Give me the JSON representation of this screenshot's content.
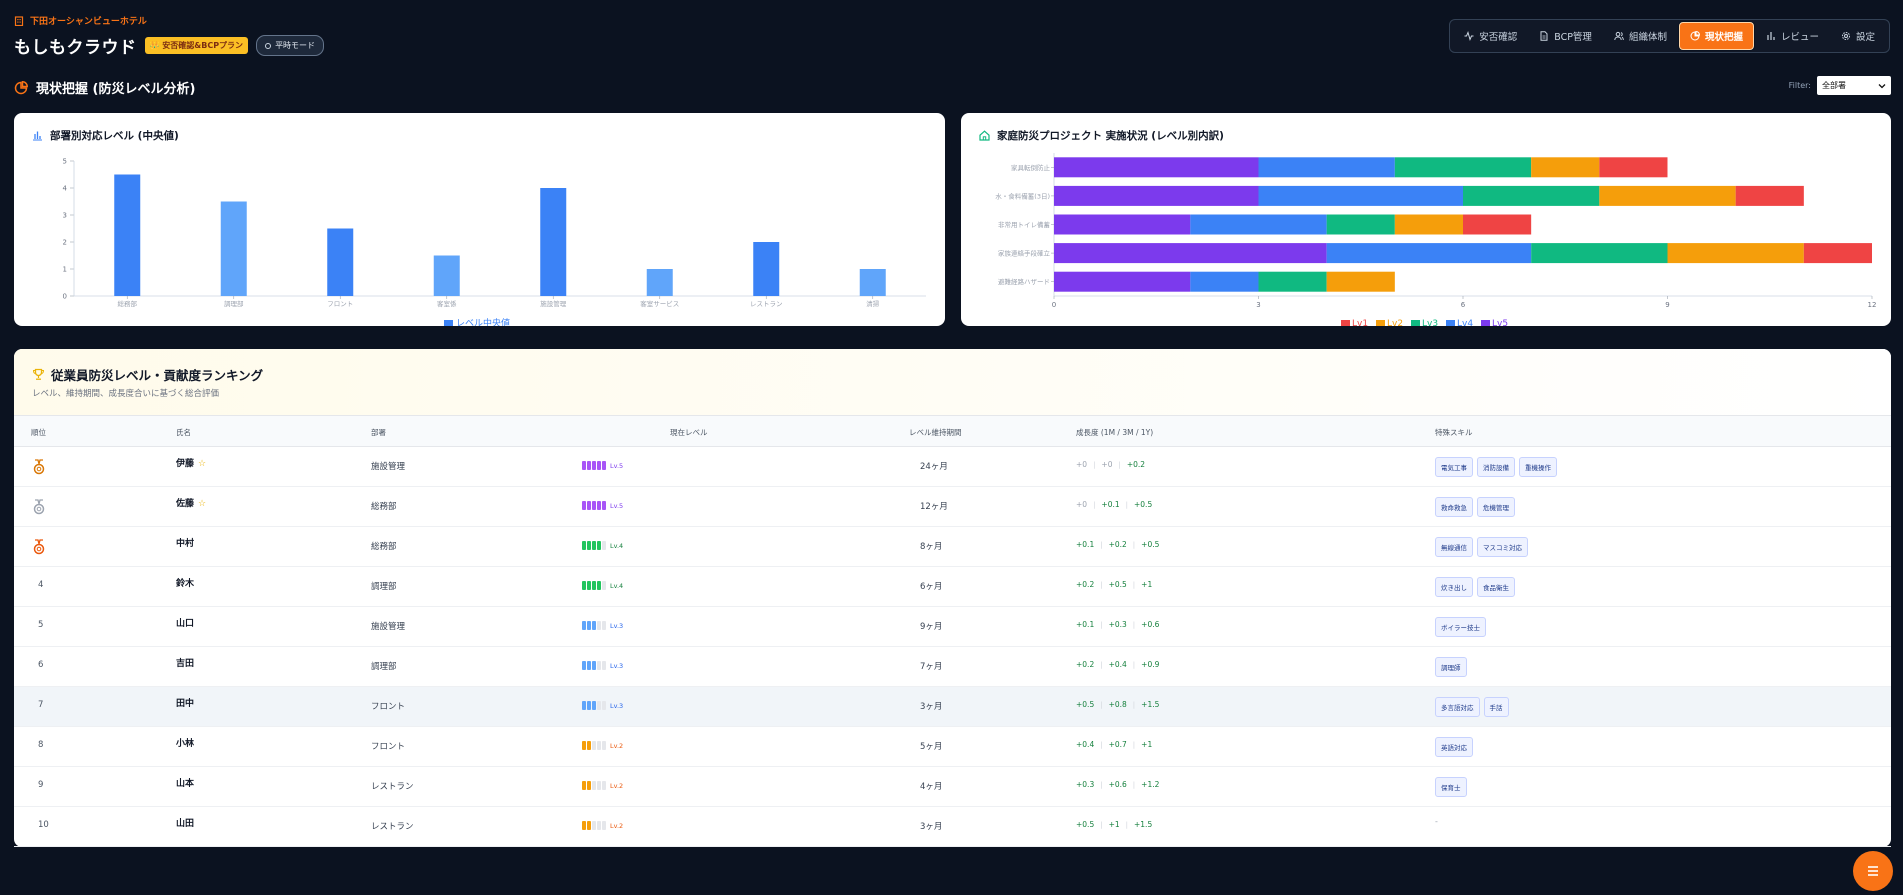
{
  "header": {
    "hotel_name": "下田オーシャンビューホテル",
    "app_name": "もしもクラウド",
    "plan_badge": "👑 安否確認&BCPプラン",
    "mode_label": "平時モード"
  },
  "nav": {
    "items": [
      {
        "label": "安否確認",
        "icon": "activity-icon"
      },
      {
        "label": "BCP管理",
        "icon": "document-icon"
      },
      {
        "label": "組織体制",
        "icon": "users-icon"
      },
      {
        "label": "現状把握",
        "icon": "pie-chart-icon",
        "active": true
      },
      {
        "label": "レビュー",
        "icon": "bar-chart-icon"
      },
      {
        "label": "設定",
        "icon": "gear-icon"
      }
    ]
  },
  "page": {
    "title": "現状把握 (防災レベル分析)",
    "filter_label": "Filter:",
    "filter_value": "全部署"
  },
  "colors": {
    "accent": "#f97316",
    "lv1": "#ef4444",
    "lv2": "#f59e0b",
    "lv3": "#10b981",
    "lv4": "#3b82f6",
    "lv5": "#7c3aed",
    "bar_dark": "#3b82f6",
    "bar_light": "#60a5fa"
  },
  "charts": {
    "dept_title": "部署別対応レベル (中央値)",
    "home_title": "家庭防災プロジェクト 実施状況 (レベル別内訳)"
  },
  "chart_data": [
    {
      "type": "bar",
      "title": "部署別対応レベル (中央値)",
      "categories": [
        "総務部",
        "調理部",
        "フロント",
        "客室係",
        "施設管理",
        "客室サービス",
        "レストラン",
        "清掃"
      ],
      "series": [
        {
          "name": "レベル中央値",
          "values": [
            4.5,
            3.5,
            2.5,
            1.5,
            4,
            1,
            2,
            1
          ]
        }
      ],
      "ylim": [
        0,
        5
      ],
      "yticks": [
        0,
        1,
        2,
        3,
        4,
        5
      ],
      "legend": "bottom"
    },
    {
      "type": "bar",
      "orientation": "horizontal",
      "stacked": true,
      "title": "家庭防災プロジェクト 実施状況 (レベル別内訳)",
      "categories": [
        "家具転倒防止",
        "水・食料備蓄(3日)",
        "非常用トイレ備蓄",
        "家族連絡手段確立",
        "避難経路ハザード"
      ],
      "series": [
        {
          "name": "Lv5",
          "values": [
            3,
            3,
            2,
            4,
            2
          ]
        },
        {
          "name": "Lv4",
          "values": [
            2,
            3,
            2,
            3,
            1
          ]
        },
        {
          "name": "Lv3",
          "values": [
            2,
            2,
            1,
            2,
            1
          ]
        },
        {
          "name": "Lv2",
          "values": [
            1,
            2,
            1,
            2,
            1
          ]
        },
        {
          "name": "Lv1",
          "values": [
            1,
            1,
            1,
            1,
            0
          ]
        }
      ],
      "legend_order": [
        "Lv1",
        "Lv2",
        "Lv3",
        "Lv4",
        "Lv5"
      ],
      "xlim": [
        0,
        12
      ],
      "xticks": [
        0,
        3,
        6,
        9,
        12
      ],
      "legend": "bottom"
    }
  ],
  "ranking": {
    "title": "従業員防災レベル・貢献度ランキング",
    "subtitle": "レベル、維持期間、成長度合いに基づく総合評価",
    "columns": {
      "rank": "順位",
      "name": "氏名",
      "dept": "部署",
      "level": "現在レベル",
      "period": "レベル維持期間",
      "growth": "成長度 (1M / 3M / 1Y)",
      "skills": "特殊スキル"
    },
    "rows": [
      {
        "rank": "1",
        "name": "伊藤",
        "star": true,
        "dept": "施設管理",
        "level": 5,
        "level_label": "Lv.5",
        "period": "24ヶ月",
        "growth": [
          "+0",
          "+0",
          "+0.2"
        ],
        "skills": [
          "電気工事",
          "消防設備",
          "重機操作"
        ]
      },
      {
        "rank": "2",
        "name": "佐藤",
        "star": true,
        "dept": "総務部",
        "level": 5,
        "level_label": "Lv.5",
        "period": "12ヶ月",
        "growth": [
          "+0",
          "+0.1",
          "+0.5"
        ],
        "skills": [
          "救命救急",
          "危機管理"
        ]
      },
      {
        "rank": "3",
        "name": "中村",
        "star": false,
        "dept": "総務部",
        "level": 4,
        "level_label": "Lv.4",
        "period": "8ヶ月",
        "growth": [
          "+0.1",
          "+0.2",
          "+0.5"
        ],
        "skills": [
          "無線通信",
          "マスコミ対応"
        ]
      },
      {
        "rank": "4",
        "name": "鈴木",
        "star": false,
        "dept": "調理部",
        "level": 4,
        "level_label": "Lv.4",
        "period": "6ヶ月",
        "growth": [
          "+0.2",
          "+0.5",
          "+1"
        ],
        "skills": [
          "炊き出し",
          "食品衛生"
        ]
      },
      {
        "rank": "5",
        "name": "山口",
        "star": false,
        "dept": "施設管理",
        "level": 3,
        "level_label": "Lv.3",
        "period": "9ヶ月",
        "growth": [
          "+0.1",
          "+0.3",
          "+0.6"
        ],
        "skills": [
          "ボイラー技士"
        ]
      },
      {
        "rank": "6",
        "name": "吉田",
        "star": false,
        "dept": "調理部",
        "level": 3,
        "level_label": "Lv.3",
        "period": "7ヶ月",
        "growth": [
          "+0.2",
          "+0.4",
          "+0.9"
        ],
        "skills": [
          "調理師"
        ]
      },
      {
        "rank": "7",
        "name": "田中",
        "star": false,
        "dept": "フロント",
        "level": 3,
        "level_label": "Lv.3",
        "period": "3ヶ月",
        "growth": [
          "+0.5",
          "+0.8",
          "+1.5"
        ],
        "skills": [
          "多言語対応",
          "手話"
        ]
      },
      {
        "rank": "8",
        "name": "小林",
        "star": false,
        "dept": "フロント",
        "level": 2,
        "level_label": "Lv.2",
        "period": "5ヶ月",
        "growth": [
          "+0.4",
          "+0.7",
          "+1"
        ],
        "skills": [
          "英語対応"
        ]
      },
      {
        "rank": "9",
        "name": "山本",
        "star": false,
        "dept": "レストラン",
        "level": 2,
        "level_label": "Lv.2",
        "period": "4ヶ月",
        "growth": [
          "+0.3",
          "+0.6",
          "+1.2"
        ],
        "skills": [
          "保育士"
        ]
      },
      {
        "rank": "10",
        "name": "山田",
        "star": false,
        "dept": "レストラン",
        "level": 2,
        "level_label": "Lv.2",
        "period": "3ヶ月",
        "growth": [
          "+0.5",
          "+1",
          "+1.5"
        ],
        "skills": []
      }
    ]
  }
}
